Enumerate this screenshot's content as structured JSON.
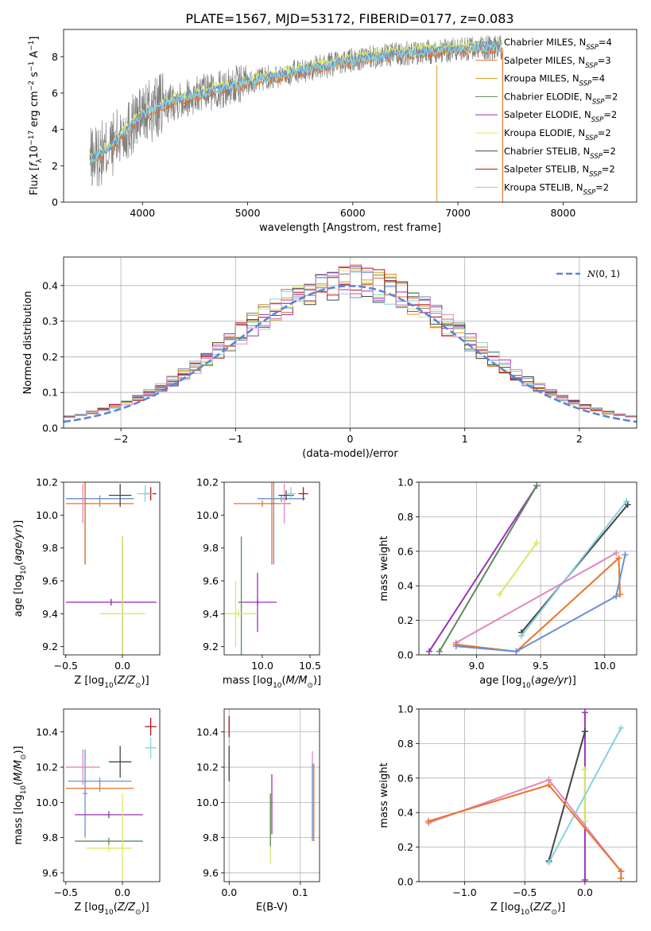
{
  "colors": {
    "Chabrier MILES": "#6b8fd6",
    "Salpeter MILES": "#e8742a",
    "Kroupa MILES": "#d89a1c",
    "Chabrier ELODIE": "#5e8a5e",
    "Salpeter ELODIE": "#9a33b8",
    "Kroupa ELODIE": "#d8e866",
    "Chabrier STELIB": "#454545",
    "Salpeter STELIB": "#b01414",
    "Kroupa STELIB": "#86d3dc",
    "pink": "#e088c0",
    "data": "#808080",
    "normal": "#5b86d6"
  },
  "chart_data": [
    {
      "id": "spectrum",
      "type": "line",
      "title": "PLATE=1567, MJD=53172, FIBERID=0177, z=0.083",
      "xlabel": "wavelength [Angstrom, rest frame]",
      "ylabel": "Flux [f_λ 10^-17 erg cm^-2 s^-1 A^-1]",
      "xlim": [
        3250,
        8700
      ],
      "ylim": [
        0,
        9.5
      ],
      "xticks": [
        4000,
        5000,
        6000,
        7000,
        8000
      ],
      "yticks": [
        0,
        2,
        4,
        6,
        8
      ],
      "grid": false,
      "legend_position": "right",
      "continuum": [
        [
          3500,
          2.3
        ],
        [
          3700,
          3.0
        ],
        [
          3850,
          4.0
        ],
        [
          4000,
          4.8
        ],
        [
          4300,
          5.6
        ],
        [
          4600,
          6.0
        ],
        [
          5000,
          6.6
        ],
        [
          5500,
          7.2
        ],
        [
          6000,
          7.8
        ],
        [
          6500,
          8.2
        ],
        [
          7000,
          8.4
        ],
        [
          7300,
          8.5
        ],
        [
          7420,
          8.5
        ]
      ],
      "legend": [
        {
          "name": "Chabrier MILES, N_SSP=4",
          "label": "Chabrier MILES, N",
          "sub": "SSP",
          "tail": "=4",
          "color_key": "Chabrier MILES"
        },
        {
          "name": "Salpeter MILES, N_SSP=3",
          "label": "Salpeter MILES, N",
          "sub": "SSP",
          "tail": "=3",
          "color_key": "Salpeter MILES"
        },
        {
          "name": "Kroupa MILES, N_SSP=4",
          "label": "Kroupa MILES, N",
          "sub": "SSP",
          "tail": "=4",
          "color_key": "Kroupa MILES"
        },
        {
          "name": "Chabrier ELODIE, N_SSP=2",
          "label": "Chabrier ELODIE, N",
          "sub": "SSP",
          "tail": "=2",
          "color_key": "Chabrier ELODIE"
        },
        {
          "name": "Salpeter ELODIE, N_SSP=2",
          "label": "Salpeter ELODIE, N",
          "sub": "SSP",
          "tail": "=2",
          "color_key": "Salpeter ELODIE"
        },
        {
          "name": "Kroupa ELODIE, N_SSP=2",
          "label": "Kroupa ELODIE, N",
          "sub": "SSP",
          "tail": "=2",
          "color_key": "Kroupa ELODIE"
        },
        {
          "name": "Chabrier STELIB, N_SSP=2",
          "label": "Chabrier STELIB, N",
          "sub": "SSP",
          "tail": "=2",
          "color_key": "Chabrier STELIB"
        },
        {
          "name": "Salpeter STELIB, N_SSP=2",
          "label": "Salpeter STELIB, N",
          "sub": "SSP",
          "tail": "=2",
          "color_key": "Salpeter STELIB"
        },
        {
          "name": "Kroupa STELIB, N_SSP=2",
          "label": "Kroupa STELIB, N",
          "sub": "SSP",
          "tail": "=2",
          "color_key": "Kroupa STELIB"
        }
      ]
    },
    {
      "id": "residuals",
      "type": "line",
      "xlabel": "(data-model)/error",
      "ylabel": "Normed distribution",
      "xlim": [
        -2.5,
        2.5
      ],
      "ylim": [
        0,
        0.48
      ],
      "xticks": [
        -2,
        -1,
        0,
        1,
        2
      ],
      "yticks": [
        0.0,
        0.1,
        0.2,
        0.3,
        0.4
      ],
      "grid": true,
      "legend_position": "top-right",
      "legend": [
        {
          "name": "N(0,1)",
          "color_key": "normal"
        }
      ],
      "bin_width": 0.1,
      "series_keys": [
        "Chabrier MILES",
        "Salpeter MILES",
        "Kroupa MILES",
        "Chabrier ELODIE",
        "Salpeter ELODIE",
        "Kroupa ELODIE",
        "Chabrier STELIB",
        "Salpeter STELIB",
        "Kroupa STELIB",
        "pink"
      ]
    },
    {
      "id": "age-vs-z",
      "type": "scatter",
      "xlabel": "Z [log10(Z/Z☉)]",
      "ylabel": "age [log10(age/yr)]",
      "xlim": [
        -0.52,
        0.33
      ],
      "ylim": [
        9.15,
        10.2
      ],
      "xticks": [
        -0.5,
        0.0
      ],
      "yticks": [
        9.2,
        9.4,
        9.6,
        9.8,
        10.0,
        10.2
      ],
      "grid": false,
      "points": [
        {
          "x": -0.2,
          "y": 10.1,
          "xerr": 0.3,
          "yerr": 0.02,
          "color_key": "Chabrier MILES"
        },
        {
          "x": -0.33,
          "y": 10.07,
          "xerr": 0.03,
          "yerr": 0.37,
          "color_key": "Chabrier MILES"
        },
        {
          "x": -0.2,
          "y": 10.07,
          "xerr": 0.3,
          "yerr": 0.02,
          "color_key": "Salpeter MILES"
        },
        {
          "x": -0.33,
          "y": 10.07,
          "xerr": 0.02,
          "yerr": 0.37,
          "color_key": "Salpeter MILES"
        },
        {
          "x": -0.35,
          "y": 10.07,
          "xerr": 0.02,
          "yerr": 0.12,
          "color_key": "pink"
        },
        {
          "x": -0.1,
          "y": 9.47,
          "xerr": 0.4,
          "yerr": 0.02,
          "color_key": "Chabrier ELODIE"
        },
        {
          "x": -0.1,
          "y": 9.47,
          "xerr": 0.4,
          "yerr": 0.02,
          "color_key": "Salpeter ELODIE"
        },
        {
          "x": 0.0,
          "y": 9.4,
          "xerr": 0.0,
          "yerr": 0.47,
          "color_key": "Chabrier ELODIE"
        },
        {
          "x": 0.0,
          "y": 9.4,
          "xerr": 0.2,
          "yerr": 0.47,
          "color_key": "Kroupa ELODIE"
        },
        {
          "x": -0.02,
          "y": 10.12,
          "xerr": 0.1,
          "yerr": 0.07,
          "color_key": "Chabrier STELIB"
        },
        {
          "x": 0.25,
          "y": 10.13,
          "xerr": 0.05,
          "yerr": 0.04,
          "color_key": "Salpeter STELIB"
        },
        {
          "x": 0.2,
          "y": 10.13,
          "xerr": 0.07,
          "yerr": 0.05,
          "color_key": "Kroupa STELIB"
        }
      ]
    },
    {
      "id": "age-vs-mass",
      "type": "scatter",
      "xlabel": "mass [log10(M/M☉)]",
      "ylabel": "",
      "xlim": [
        9.6,
        10.6
      ],
      "ylim": [
        9.15,
        10.2
      ],
      "xticks": [
        9.5,
        10.0,
        10.5
      ],
      "yticks": [
        9.2,
        9.4,
        9.6,
        9.8,
        10.0,
        10.2
      ],
      "grid": false,
      "points": [
        {
          "x": 10.2,
          "y": 10.1,
          "xerr": 0.25,
          "yerr": 0.02,
          "color_key": "Chabrier MILES"
        },
        {
          "x": 10.12,
          "y": 10.07,
          "xerr": 0.02,
          "yerr": 0.37,
          "color_key": "Chabrier MILES"
        },
        {
          "x": 10.0,
          "y": 10.07,
          "xerr": 0.3,
          "yerr": 0.02,
          "color_key": "Salpeter MILES"
        },
        {
          "x": 10.1,
          "y": 10.07,
          "xerr": 0.02,
          "yerr": 0.37,
          "color_key": "Salpeter MILES"
        },
        {
          "x": 10.23,
          "y": 10.07,
          "xerr": 0.02,
          "yerr": 0.12,
          "color_key": "pink"
        },
        {
          "x": 9.95,
          "y": 9.47,
          "xerr": 0.2,
          "yerr": 0.02,
          "color_key": "Salpeter ELODIE"
        },
        {
          "x": 9.95,
          "y": 9.47,
          "xerr": 0.02,
          "yerr": 0.18,
          "color_key": "Salpeter ELODIE"
        },
        {
          "x": 9.78,
          "y": 9.47,
          "xerr": 0.02,
          "yerr": 0.4,
          "color_key": "Chabrier ELODIE"
        },
        {
          "x": 9.75,
          "y": 9.4,
          "xerr": 0.2,
          "yerr": 0.02,
          "color_key": "Kroupa ELODIE"
        },
        {
          "x": 9.72,
          "y": 9.4,
          "xerr": 0.02,
          "yerr": 0.2,
          "color_key": "Kroupa ELODIE"
        },
        {
          "x": 10.25,
          "y": 10.12,
          "xerr": 0.08,
          "yerr": 0.03,
          "color_key": "Chabrier STELIB"
        },
        {
          "x": 10.43,
          "y": 10.13,
          "xerr": 0.05,
          "yerr": 0.04,
          "color_key": "Salpeter STELIB"
        },
        {
          "x": 10.3,
          "y": 10.13,
          "xerr": 0.05,
          "yerr": 0.04,
          "color_key": "Kroupa STELIB"
        }
      ]
    },
    {
      "id": "weight-vs-age",
      "type": "line",
      "xlabel": "age [log10(age/yr)]",
      "ylabel": "mass weight",
      "xlim": [
        8.55,
        10.25
      ],
      "ylim": [
        0,
        1.0
      ],
      "xticks": [
        9.0,
        9.5,
        10.0
      ],
      "yticks": [
        0.0,
        0.2,
        0.4,
        0.6,
        0.8,
        1.0
      ],
      "grid": true,
      "series": [
        {
          "color_key": "Salpeter ELODIE",
          "x": [
            8.63,
            9.47
          ],
          "y": [
            0.02,
            0.98
          ]
        },
        {
          "color_key": "Chabrier ELODIE",
          "x": [
            8.71,
            9.47
          ],
          "y": [
            0.02,
            0.98
          ]
        },
        {
          "color_key": "Kroupa ELODIE",
          "x": [
            9.18,
            9.47
          ],
          "y": [
            0.35,
            0.65
          ]
        },
        {
          "color_key": "Chabrier STELIB",
          "x": [
            9.35,
            10.18
          ],
          "y": [
            0.13,
            0.87
          ]
        },
        {
          "color_key": "Kroupa STELIB",
          "x": [
            9.35,
            10.17
          ],
          "y": [
            0.11,
            0.89
          ]
        },
        {
          "color_key": "pink",
          "x": [
            8.84,
            10.09
          ],
          "y": [
            0.07,
            0.59
          ]
        },
        {
          "color_key": "Salpeter MILES",
          "x": [
            8.84,
            9.31,
            10.11,
            10.12
          ],
          "y": [
            0.06,
            0.02,
            0.56,
            0.35
          ]
        },
        {
          "color_key": "Chabrier MILES",
          "x": [
            8.84,
            9.31,
            10.09,
            10.16
          ],
          "y": [
            0.05,
            0.02,
            0.34,
            0.58
          ]
        }
      ]
    },
    {
      "id": "mass-vs-z",
      "type": "scatter",
      "xlabel": "Z [log10(Z/Z☉)]",
      "ylabel": "mass [log10(M/M☉)]",
      "xlim": [
        -0.52,
        0.33
      ],
      "ylim": [
        9.55,
        10.53
      ],
      "xticks": [
        -0.5,
        0.0
      ],
      "yticks": [
        9.6,
        9.8,
        10.0,
        10.2,
        10.4
      ],
      "grid": false,
      "points": [
        {
          "x": -0.2,
          "y": 10.12,
          "xerr": 0.28,
          "yerr": 0.02,
          "color_key": "Chabrier MILES"
        },
        {
          "x": -0.33,
          "y": 10.05,
          "xerr": 0.02,
          "yerr": 0.25,
          "color_key": "Chabrier MILES"
        },
        {
          "x": -0.2,
          "y": 10.08,
          "xerr": 0.3,
          "yerr": 0.02,
          "color_key": "Salpeter MILES"
        },
        {
          "x": -0.35,
          "y": 10.2,
          "xerr": 0.15,
          "yerr": 0.1,
          "color_key": "pink"
        },
        {
          "x": -0.12,
          "y": 9.93,
          "xerr": 0.3,
          "yerr": 0.02,
          "color_key": "Salpeter ELODIE"
        },
        {
          "x": -0.12,
          "y": 9.78,
          "xerr": 0.3,
          "yerr": 0.02,
          "color_key": "Chabrier ELODIE"
        },
        {
          "x": -0.12,
          "y": 9.74,
          "xerr": 0.2,
          "yerr": 0.02,
          "color_key": "Kroupa ELODIE"
        },
        {
          "x": 0.0,
          "y": 9.75,
          "xerr": 0.0,
          "yerr": 0.3,
          "color_key": "Kroupa ELODIE"
        },
        {
          "x": -0.02,
          "y": 10.23,
          "xerr": 0.1,
          "yerr": 0.09,
          "color_key": "Chabrier STELIB"
        },
        {
          "x": 0.25,
          "y": 10.43,
          "xerr": 0.05,
          "yerr": 0.05,
          "color_key": "Salpeter STELIB"
        },
        {
          "x": 0.25,
          "y": 10.31,
          "xerr": 0.05,
          "yerr": 0.06,
          "color_key": "Kroupa STELIB"
        }
      ]
    },
    {
      "id": "mass-vs-ebv",
      "type": "scatter",
      "xlabel": "E(B-V)",
      "ylabel": "",
      "xlim": [
        -0.007,
        0.127
      ],
      "ylim": [
        9.55,
        10.53
      ],
      "xticks": [
        0.0,
        0.1
      ],
      "yticks": [
        9.6,
        9.8,
        10.0,
        10.2,
        10.4
      ],
      "grid": true,
      "points": [
        {
          "x": 0.0,
          "y": 10.43,
          "xerr": 0.0,
          "yerr": 0.06,
          "color_key": "Salpeter STELIB"
        },
        {
          "x": 0.0,
          "y": 10.3,
          "xerr": 0.0,
          "yerr": 0.07,
          "color_key": "Kroupa STELIB"
        },
        {
          "x": 0.0,
          "y": 10.22,
          "xerr": 0.0,
          "yerr": 0.1,
          "color_key": "Chabrier STELIB"
        },
        {
          "x": 0.06,
          "y": 9.99,
          "xerr": 0.0,
          "yerr": 0.17,
          "color_key": "Salpeter ELODIE"
        },
        {
          "x": 0.058,
          "y": 9.85,
          "xerr": 0.0,
          "yerr": 0.2,
          "color_key": "Kroupa ELODIE"
        },
        {
          "x": 0.058,
          "y": 9.9,
          "xerr": 0.0,
          "yerr": 0.15,
          "color_key": "Chabrier ELODIE"
        },
        {
          "x": 0.117,
          "y": 10.04,
          "xerr": 0.0,
          "yerr": 0.25,
          "color_key": "pink"
        },
        {
          "x": 0.119,
          "y": 10.0,
          "xerr": 0.0,
          "yerr": 0.22,
          "color_key": "Salpeter MILES"
        },
        {
          "x": 0.117,
          "y": 10.0,
          "xerr": 0.0,
          "yerr": 0.22,
          "color_key": "Chabrier MILES"
        }
      ]
    },
    {
      "id": "weight-vs-z",
      "type": "line",
      "xlabel": "Z [log10(Z/Z☉)]",
      "ylabel": "mass weight",
      "xlim": [
        -1.38,
        0.43
      ],
      "ylim": [
        0,
        1.0
      ],
      "xticks": [
        -1.0,
        -0.5,
        0.0
      ],
      "yticks": [
        0.0,
        0.2,
        0.4,
        0.6,
        0.8,
        1.0
      ],
      "grid": true,
      "series": [
        {
          "color_key": "Salpeter ELODIE",
          "x": [
            0.0,
            0.0
          ],
          "y": [
            0.01,
            0.98
          ]
        },
        {
          "color_key": "Kroupa ELODIE",
          "x": [
            0.0,
            0.0
          ],
          "y": [
            0.35,
            0.65
          ]
        },
        {
          "color_key": "Chabrier STELIB",
          "x": [
            -0.3,
            0.0
          ],
          "y": [
            0.12,
            0.87
          ]
        },
        {
          "color_key": "Kroupa STELIB",
          "x": [
            -0.3,
            0.3
          ],
          "y": [
            0.11,
            0.89
          ]
        },
        {
          "color_key": "pink",
          "x": [
            -1.3,
            -0.3,
            0.3
          ],
          "y": [
            0.34,
            0.59,
            0.06
          ]
        },
        {
          "color_key": "Salpeter MILES",
          "x": [
            -1.3,
            -0.3,
            0.3,
            0.3
          ],
          "y": [
            0.35,
            0.56,
            0.06,
            0.02
          ]
        }
      ]
    }
  ]
}
